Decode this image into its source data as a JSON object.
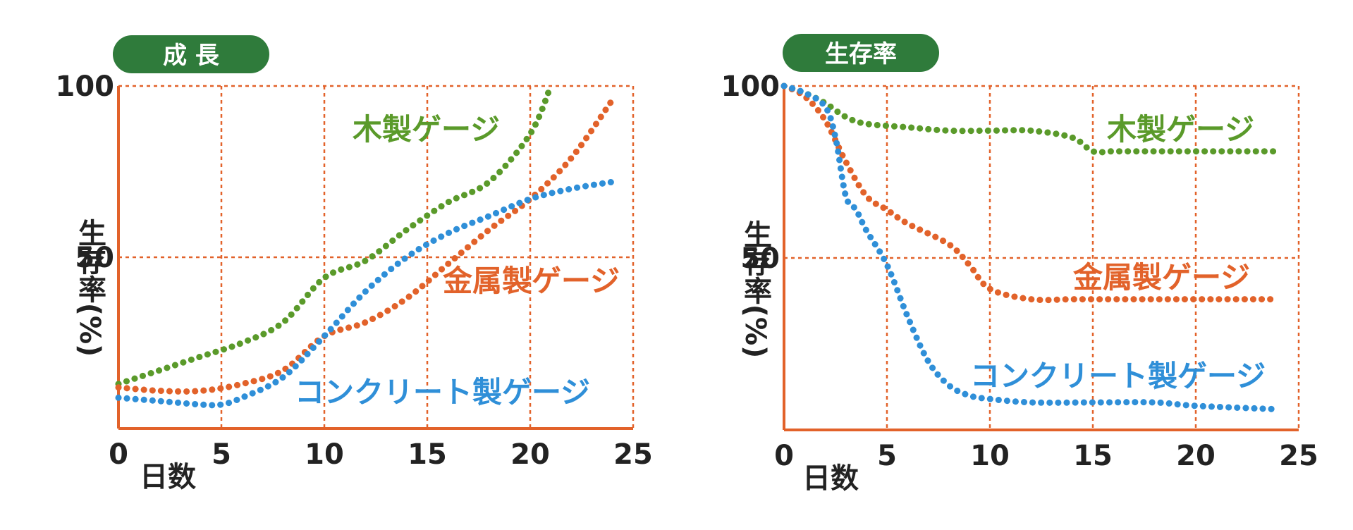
{
  "chart_data": [
    {
      "type": "line",
      "title": "成 長",
      "xlabel": "日数",
      "ylabel": "生存率(%)",
      "xlim": [
        0,
        25
      ],
      "ylim": [
        0,
        100
      ],
      "x_ticks": [
        "0",
        "5",
        "10",
        "15",
        "20",
        "25"
      ],
      "y_ticks": [
        "50",
        "100"
      ],
      "grid": true,
      "series": [
        {
          "name": "木製ゲージ",
          "color": "#5a9a2a",
          "x": [
            0,
            2,
            4,
            6,
            8,
            10,
            12,
            14,
            16,
            18,
            20,
            21
          ],
          "y": [
            13,
            17,
            21,
            25,
            31,
            44,
            49,
            58,
            66,
            72,
            86,
            100
          ]
        },
        {
          "name": "金属製ゲージ",
          "color": "#e2622a",
          "x": [
            0,
            2,
            4,
            6,
            8,
            10,
            12,
            14,
            16,
            18,
            20,
            22,
            24
          ],
          "y": [
            12,
            11,
            11,
            13,
            17,
            27,
            31,
            38,
            48,
            58,
            67,
            79,
            96
          ]
        },
        {
          "name": "コンクリート製ゲージ",
          "color": "#2f8fd8",
          "x": [
            0,
            2,
            4,
            5,
            6,
            8,
            10,
            12,
            14,
            16,
            18,
            20,
            22,
            24
          ],
          "y": [
            9,
            8,
            7,
            7,
            9,
            15,
            27,
            40,
            50,
            57,
            62,
            67,
            70,
            72
          ]
        }
      ]
    },
    {
      "type": "line",
      "title": "生存率",
      "xlabel": "日数",
      "ylabel": "生存率(%)",
      "xlim": [
        0,
        25
      ],
      "ylim": [
        0,
        100
      ],
      "x_ticks": [
        "0",
        "5",
        "10",
        "15",
        "20",
        "25"
      ],
      "y_ticks": [
        "50",
        "100"
      ],
      "grid": true,
      "series": [
        {
          "name": "木製ゲージ",
          "color": "#5a9a2a",
          "x": [
            0,
            1,
            2,
            3,
            4,
            6,
            8,
            10,
            12,
            14,
            15,
            16,
            18,
            20,
            22,
            24
          ],
          "y": [
            100,
            98,
            95,
            91,
            89,
            88,
            87,
            87,
            87,
            85,
            81,
            81,
            81,
            81,
            81,
            81
          ]
        },
        {
          "name": "金属製ゲージ",
          "color": "#e2622a",
          "x": [
            0,
            1,
            2,
            3,
            4,
            5,
            6,
            8,
            9,
            10,
            12,
            14,
            16,
            18,
            20,
            24
          ],
          "y": [
            100,
            97,
            90,
            78,
            68,
            64,
            60,
            54,
            48,
            41,
            38,
            38,
            38,
            38,
            38,
            38
          ]
        },
        {
          "name": "コンクリート製ゲージ",
          "color": "#2f8fd8",
          "x": [
            0,
            1,
            2,
            2.5,
            3,
            3.5,
            4,
            5,
            6,
            7,
            8,
            9,
            10,
            12,
            15,
            18,
            20,
            24
          ],
          "y": [
            100,
            98,
            94,
            85,
            68,
            64,
            58,
            48,
            33,
            20,
            13,
            10,
            9,
            8,
            8,
            8,
            7,
            6
          ]
        }
      ]
    }
  ]
}
